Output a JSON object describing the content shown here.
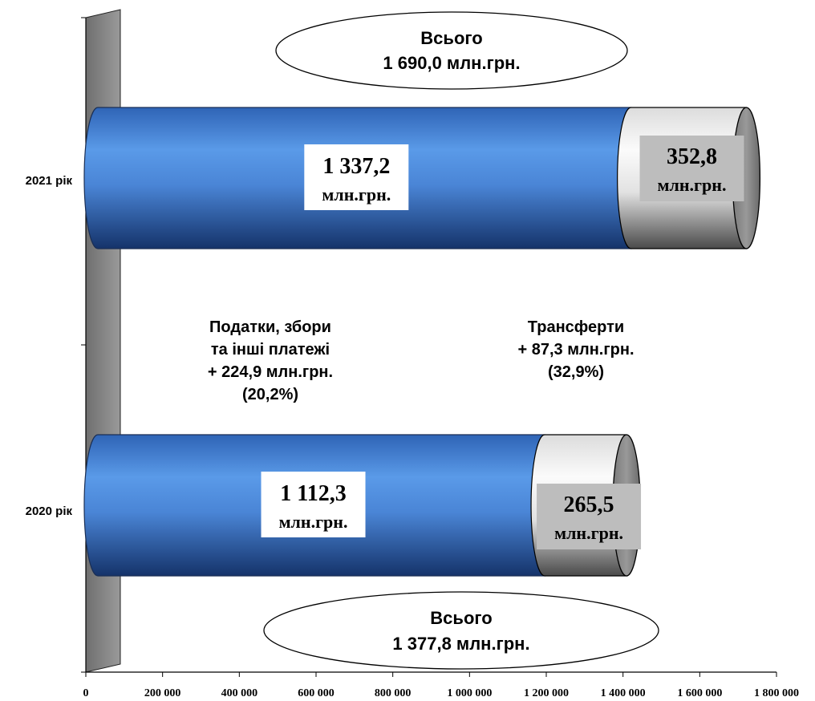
{
  "chart_data": {
    "type": "bar",
    "orientation": "horizontal",
    "stacked": true,
    "style": "3d-cylinder",
    "categories": [
      "2021 рік",
      "2020 рік"
    ],
    "series": [
      {
        "values": [
          1337200,
          1112300
        ],
        "labels": [
          "1 337,2",
          "1 112,3"
        ],
        "unit": "млн.грн.",
        "color": "#4f8fe3"
      },
      {
        "values": [
          352800,
          265500
        ],
        "labels": [
          "352,8",
          "265,5"
        ],
        "unit": "млн.грн.",
        "color": "#e6e6e6"
      }
    ],
    "xlim": [
      0,
      1800000
    ],
    "x_ticks": [
      0,
      200000,
      400000,
      600000,
      800000,
      1000000,
      1200000,
      1400000,
      1600000,
      1800000
    ],
    "x_tick_labels": [
      "0",
      "200 000",
      "400 000",
      "600 000",
      "800 000",
      "1 000 000",
      "1 200 000",
      "1 400 000",
      "1 600 000",
      "1 800 000"
    ],
    "totals": [
      {
        "line1": "Всього",
        "line2": "1 690,0 млн.грн."
      },
      {
        "line1": "Всього",
        "line2": "1 377,8 млн.грн."
      }
    ],
    "annotations": [
      {
        "lines": [
          "Податки, збори",
          "та інші платежі",
          "+ 224,9 млн.грн.",
          "(20,2%)"
        ]
      },
      {
        "lines": [
          "Трансферти",
          "+ 87,3 млн.грн.",
          "(32,9%)"
        ]
      }
    ],
    "legend": "none",
    "grid": false
  }
}
